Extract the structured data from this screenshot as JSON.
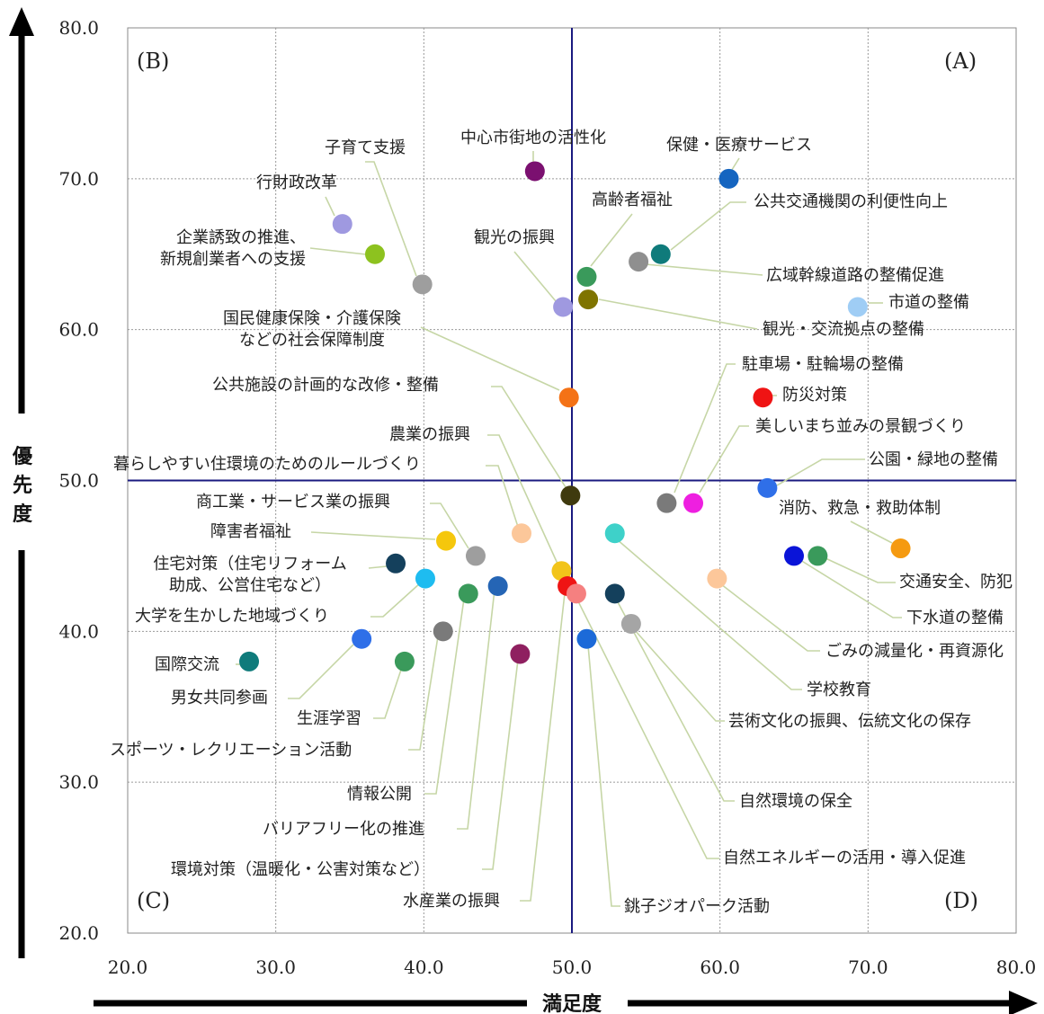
{
  "chart_data": {
    "type": "scatter",
    "xlabel": "満足度",
    "ylabel": "優先度",
    "xlim": [
      20,
      80
    ],
    "ylim": [
      20,
      80
    ],
    "xticks": [
      "20.0",
      "30.0",
      "40.0",
      "50.0",
      "60.0",
      "70.0",
      "80.0"
    ],
    "yticks": [
      "20.0",
      "30.0",
      "40.0",
      "50.0",
      "60.0",
      "70.0",
      "80.0"
    ],
    "grid": true,
    "reference_lines": {
      "x": 50.0,
      "y": 50.0,
      "color": "#1a1a80"
    },
    "quadrant_labels": {
      "top_right": "(A)",
      "top_left": "(B)",
      "bottom_left": "(C)",
      "bottom_right": "(D)"
    },
    "points": [
      {
        "label": "中心市街地の活性化",
        "x": 47.5,
        "y": 70.5,
        "color": "#7b1070"
      },
      {
        "label": "保健・医療サービス",
        "x": 60.6,
        "y": 70.0,
        "color": "#1565c0"
      },
      {
        "label": "子育て支援",
        "x": 39.9,
        "y": 63.0,
        "color": "#9e9e9e"
      },
      {
        "label": "行財政改革",
        "x": 34.5,
        "y": 67.0,
        "color": "#9f99e0"
      },
      {
        "label": "企業誘致の推進、新規創業者への支援",
        "x": 36.7,
        "y": 65.0,
        "color": "#8dc21f"
      },
      {
        "label": "高齢者福祉",
        "x": 51.0,
        "y": 63.5,
        "color": "#3a9a5b"
      },
      {
        "label": "公共交通機関の利便性向上",
        "x": 56.0,
        "y": 65.0,
        "color": "#0f7b7b"
      },
      {
        "label": "広域幹線道路の整備促進",
        "x": 54.5,
        "y": 64.5,
        "color": "#8f8f8f"
      },
      {
        "label": "観光の振興",
        "x": 49.4,
        "y": 61.5,
        "color": "#9f99e0"
      },
      {
        "label": "観光・交流拠点の整備",
        "x": 51.1,
        "y": 62.0,
        "color": "#7f7400"
      },
      {
        "label": "市道の整備",
        "x": 69.3,
        "y": 61.5,
        "color": "#9fcdf5"
      },
      {
        "label": "国民健康保険・介護保険などの社会保障制度",
        "x": 49.8,
        "y": 55.5,
        "color": "#f47216"
      },
      {
        "label": "防災対策",
        "x": 62.9,
        "y": 55.5,
        "color": "#ef1414"
      },
      {
        "label": "駐車場・駐輪場の整備",
        "x": 56.4,
        "y": 48.5,
        "color": "#7a7a7a"
      },
      {
        "label": "美しいまち並みの景観づくり",
        "x": 58.2,
        "y": 48.5,
        "color": "#ee1fe0"
      },
      {
        "label": "公園・緑地の整備",
        "x": 63.2,
        "y": 49.5,
        "color": "#2f6fe8"
      },
      {
        "label": "公共施設の計画的な改修・整備",
        "x": 49.9,
        "y": 49.0,
        "color": "#3f3a0e"
      },
      {
        "label": "消防、救急・救助体制",
        "x": 72.2,
        "y": 45.5,
        "color": "#f59a10"
      },
      {
        "label": "交通安全、防犯",
        "x": 66.6,
        "y": 45.0,
        "color": "#3a9a5b"
      },
      {
        "label": "下水道の整備",
        "x": 65.0,
        "y": 45.0,
        "color": "#0a14d8"
      },
      {
        "label": "暮らしやすい住環境のためのルールづくり",
        "x": 46.6,
        "y": 46.5,
        "color": "#fcc79a"
      },
      {
        "label": "農業の振興",
        "x": 49.3,
        "y": 44.0,
        "color": "#f2c41a"
      },
      {
        "label": "商工業・サービス業の振興",
        "x": 43.5,
        "y": 45.0,
        "color": "#9e9e9e"
      },
      {
        "label": "障害者福祉",
        "x": 41.5,
        "y": 46.0,
        "color": "#f5c70c"
      },
      {
        "label": "住宅対策（住宅リフォーム助成、公営住宅など）",
        "x": 38.1,
        "y": 44.5,
        "color": "#14405c"
      },
      {
        "label": "大学を生かした地域づくり",
        "x": 40.1,
        "y": 43.5,
        "color": "#1ebcf0"
      },
      {
        "label": "国際交流",
        "x": 28.2,
        "y": 38.0,
        "color": "#0f7b7b"
      },
      {
        "label": "男女共同参画",
        "x": 35.8,
        "y": 39.5,
        "color": "#2f6fe8"
      },
      {
        "label": "生涯学習",
        "x": 38.7,
        "y": 38.0,
        "color": "#3a9a5b"
      },
      {
        "label": "スポーツ・レクリエーション活動",
        "x": 41.3,
        "y": 40.0,
        "color": "#7a7a7a"
      },
      {
        "label": "情報公開",
        "x": 43.0,
        "y": 42.5,
        "color": "#3a9a5b"
      },
      {
        "label": "バリアフリー化の推進",
        "x": 45.0,
        "y": 43.0,
        "color": "#2565b5"
      },
      {
        "label": "環境対策（温暖化・公害対策など）",
        "x": 46.5,
        "y": 38.5,
        "color": "#8f2060"
      },
      {
        "label": "水産業の振興",
        "x": 49.7,
        "y": 43.0,
        "color": "#ef1414"
      },
      {
        "label": "自然エネルギーの活用・導入促進",
        "x": 50.3,
        "y": 42.5,
        "color": "#f58080"
      },
      {
        "label": "銚子ジオパーク活動",
        "x": 51.0,
        "y": 39.5,
        "color": "#1c6ad8"
      },
      {
        "label": "自然環境の保全",
        "x": 52.9,
        "y": 42.5,
        "color": "#14405c"
      },
      {
        "label": "芸術文化の振興、伝統文化の保存",
        "x": 54.0,
        "y": 40.5,
        "color": "#a5a5a5"
      },
      {
        "label": "学校教育",
        "x": 52.9,
        "y": 46.5,
        "color": "#3ed1c9"
      },
      {
        "label": "ごみの減量化・再資源化",
        "x": 59.8,
        "y": 43.5,
        "color": "#fcc79a"
      }
    ]
  }
}
